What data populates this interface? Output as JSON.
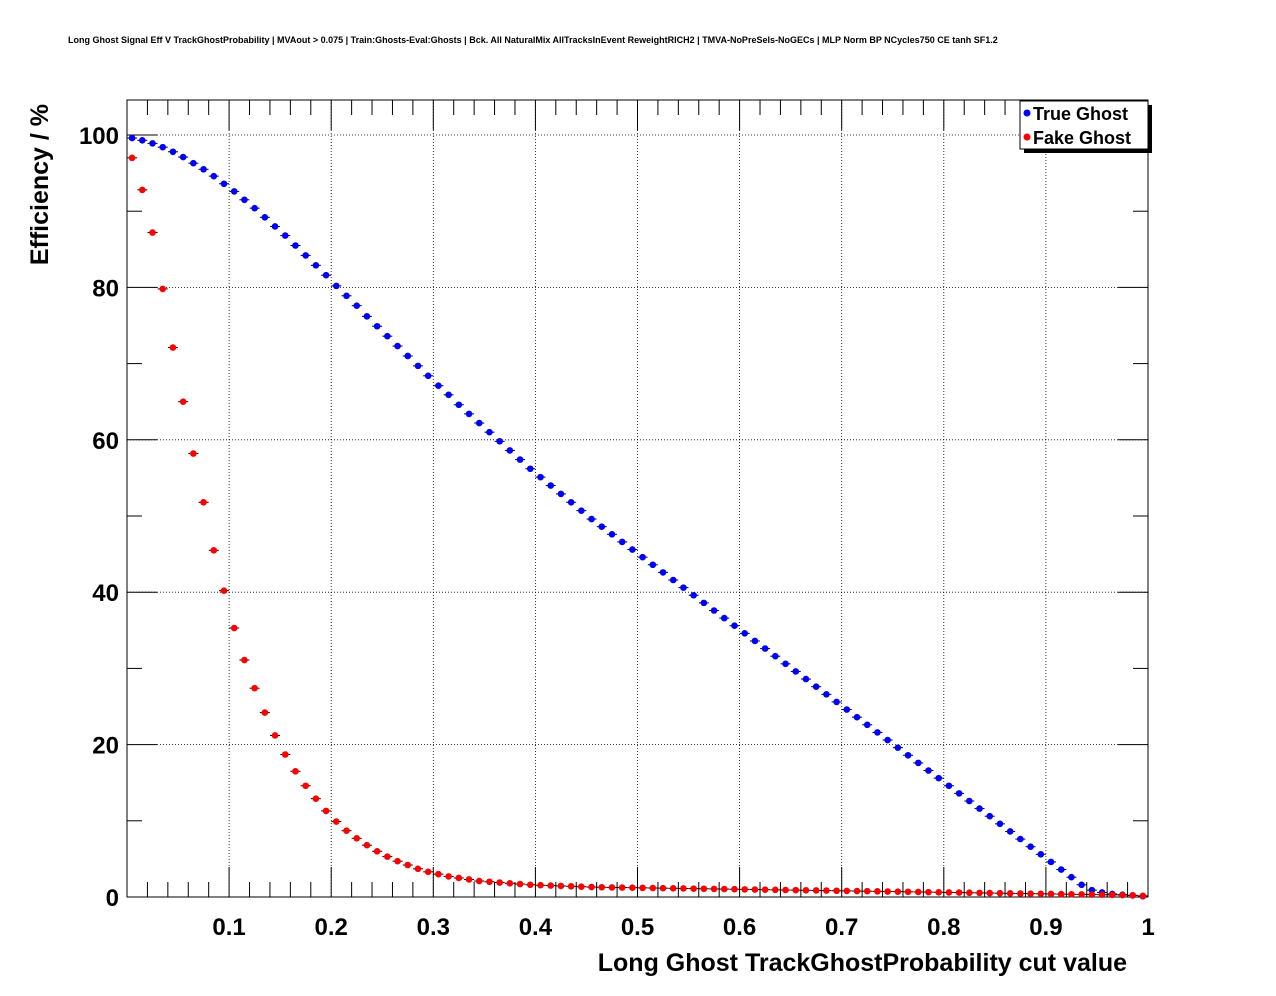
{
  "chart_data": {
    "type": "scatter",
    "title": "Long Ghost Signal Eff V TrackGhostProbability | MVAout > 0.075 | Train:Ghosts-Eval:Ghosts | Bck. All NaturalMix AllTracksInEvent ReweightRICH2 | TMVA-NoPreSels-NoGECs | MLP Norm BP NCycles750 CE tanh SF1.2",
    "xlabel": "Long Ghost TrackGhostProbability cut value",
    "ylabel": "Efficiency / %",
    "xlim": [
      0,
      1
    ],
    "ylim": [
      0,
      104
    ],
    "xticks": [
      "0.1",
      "0.2",
      "0.3",
      "0.4",
      "0.5",
      "0.6",
      "0.7",
      "0.8",
      "0.9",
      "1"
    ],
    "yticks": [
      "0",
      "20",
      "40",
      "60",
      "80",
      "100"
    ],
    "grid": true,
    "legend_position": "top-right",
    "x": [
      0.005,
      0.015,
      0.025,
      0.035,
      0.045,
      0.055,
      0.065,
      0.075,
      0.085,
      0.095,
      0.105,
      0.115,
      0.125,
      0.135,
      0.145,
      0.155,
      0.165,
      0.175,
      0.185,
      0.195,
      0.205,
      0.215,
      0.225,
      0.235,
      0.245,
      0.255,
      0.265,
      0.275,
      0.285,
      0.295,
      0.305,
      0.315,
      0.325,
      0.335,
      0.345,
      0.355,
      0.365,
      0.375,
      0.385,
      0.395,
      0.405,
      0.415,
      0.425,
      0.435,
      0.445,
      0.455,
      0.465,
      0.475,
      0.485,
      0.495,
      0.505,
      0.515,
      0.525,
      0.535,
      0.545,
      0.555,
      0.565,
      0.575,
      0.585,
      0.595,
      0.605,
      0.615,
      0.625,
      0.635,
      0.645,
      0.655,
      0.665,
      0.675,
      0.685,
      0.695,
      0.705,
      0.715,
      0.725,
      0.735,
      0.745,
      0.755,
      0.765,
      0.775,
      0.785,
      0.795,
      0.805,
      0.815,
      0.825,
      0.835,
      0.845,
      0.855,
      0.865,
      0.875,
      0.885,
      0.895,
      0.905,
      0.915,
      0.925,
      0.935,
      0.945,
      0.955,
      0.965,
      0.975,
      0.985,
      0.995
    ],
    "series": [
      {
        "name": "True Ghost",
        "color": "#0000ff",
        "values": [
          99.6,
          99.3,
          98.9,
          98.4,
          97.8,
          97.1,
          96.3,
          95.5,
          94.6,
          93.6,
          92.6,
          91.5,
          90.4,
          89.2,
          88.0,
          86.8,
          85.5,
          84.2,
          82.9,
          81.6,
          80.2,
          78.9,
          77.6,
          76.2,
          74.9,
          73.6,
          72.3,
          71.0,
          69.7,
          68.4,
          67.1,
          65.9,
          64.6,
          63.4,
          62.2,
          61.0,
          59.8,
          58.6,
          57.4,
          56.2,
          55.1,
          54.0,
          52.9,
          51.8,
          50.7,
          49.6,
          48.6,
          47.6,
          46.6,
          45.6,
          44.6,
          43.6,
          42.6,
          41.6,
          40.6,
          39.6,
          38.6,
          37.6,
          36.6,
          35.6,
          34.6,
          33.6,
          32.6,
          31.6,
          30.6,
          29.6,
          28.6,
          27.6,
          26.6,
          25.6,
          24.6,
          23.6,
          22.6,
          21.6,
          20.6,
          19.6,
          18.6,
          17.6,
          16.6,
          15.6,
          14.6,
          13.6,
          12.6,
          11.6,
          10.6,
          9.6,
          8.6,
          7.6,
          6.6,
          5.6,
          4.6,
          3.6,
          2.6,
          1.6,
          0.9,
          0.6,
          0.4,
          0.3,
          0.2,
          0.1
        ]
      },
      {
        "name": "Fake Ghost",
        "color": "#ff0000",
        "values": [
          97.0,
          92.8,
          87.2,
          79.8,
          72.1,
          65.0,
          58.2,
          51.8,
          45.5,
          40.2,
          35.3,
          31.1,
          27.4,
          24.2,
          21.2,
          18.7,
          16.5,
          14.6,
          12.9,
          11.3,
          9.9,
          8.7,
          7.7,
          6.8,
          6.0,
          5.3,
          4.7,
          4.2,
          3.7,
          3.3,
          3.0,
          2.7,
          2.5,
          2.3,
          2.1,
          2.0,
          1.9,
          1.8,
          1.7,
          1.6,
          1.55,
          1.5,
          1.45,
          1.4,
          1.35,
          1.3,
          1.28,
          1.26,
          1.24,
          1.22,
          1.2,
          1.18,
          1.16,
          1.14,
          1.12,
          1.1,
          1.08,
          1.06,
          1.04,
          1.02,
          1.0,
          0.98,
          0.96,
          0.94,
          0.92,
          0.9,
          0.88,
          0.86,
          0.84,
          0.82,
          0.8,
          0.78,
          0.76,
          0.74,
          0.72,
          0.7,
          0.68,
          0.66,
          0.64,
          0.62,
          0.6,
          0.58,
          0.56,
          0.54,
          0.52,
          0.5,
          0.48,
          0.46,
          0.44,
          0.42,
          0.4,
          0.38,
          0.36,
          0.34,
          0.32,
          0.3,
          0.28,
          0.25,
          0.22,
          0.15
        ]
      }
    ]
  }
}
